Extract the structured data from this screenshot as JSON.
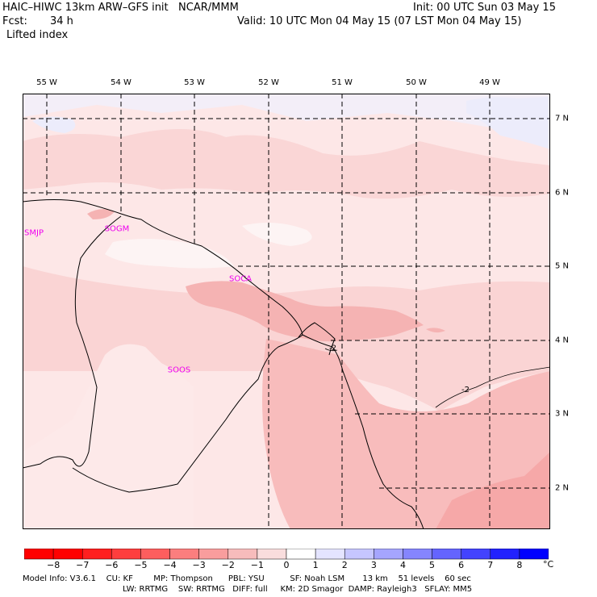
{
  "header": {
    "title": "HAIC–HIWC 13km ARW–GFS init   NCAR/MMM",
    "init": "Init: 00 UTC Sun 03 May 15",
    "fcst_label": "Fcst:",
    "fcst_value": "34 h",
    "valid": "Valid: 10 UTC Mon 04 May 15 (07 LST Mon 04 May 15)",
    "field": "Lifted index"
  },
  "map": {
    "longitude_labels": [
      "55 W",
      "54 W",
      "53 W",
      "52 W",
      "51 W",
      "50 W",
      "49 W"
    ],
    "latitude_labels": [
      "7 N",
      "6 N",
      "5 N",
      "4 N",
      "3 N",
      "2 N"
    ],
    "stations": [
      "SMJP",
      "SOGM",
      "SOCA",
      "SOOS"
    ],
    "contour_labels": [
      "-2",
      "-2"
    ]
  },
  "colorbar": {
    "ticks": [
      "−8",
      "−7",
      "−6",
      "−5",
      "−4",
      "−3",
      "−2",
      "−1",
      "0",
      "1",
      "2",
      "3",
      "4",
      "5",
      "6",
      "7",
      "8"
    ],
    "unit": "°C",
    "colors": [
      "#ff0000",
      "#ff1f1f",
      "#fe3e3e",
      "#fd5e5e",
      "#fb7e7e",
      "#f99d9d",
      "#f7bcbc",
      "#f9dddd",
      "#ffffff",
      "#e4e4ff",
      "#c6c6ff",
      "#a5a5fe",
      "#8585fe",
      "#6464fe",
      "#4343fe",
      "#2222fe",
      "#0000ff"
    ]
  },
  "footer": {
    "line1": "Model Info: V3.6.1    CU: KF        MP: Thompson      PBL: YSU          SF: Noah LSM       13 km    51 levels    60 sec",
    "line2": "LW: RRTMG    SW: RRTMG   DIFF: full     KM: 2D Smagor  DAMP: Rayleigh3   SFLAY: MM5"
  }
}
